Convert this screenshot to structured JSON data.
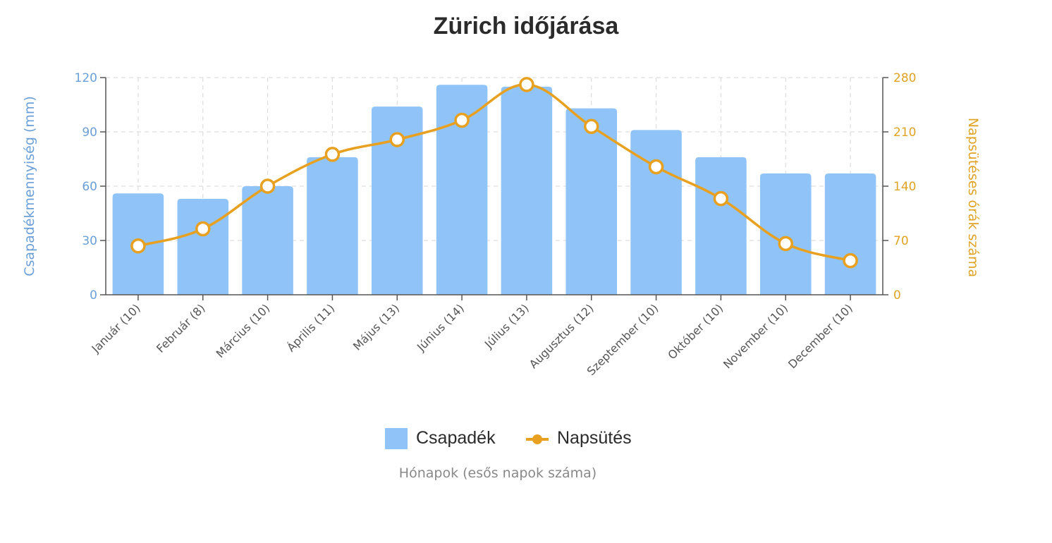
{
  "title": "Zürich időjárása",
  "axes": {
    "left_label": "Csapadékmennyiség (mm)",
    "right_label": "Napsütéses órák száma",
    "x_label": "Hónapok (esős napok száma)",
    "left_ticks": [
      "0",
      "30",
      "60",
      "90",
      "120"
    ],
    "right_ticks": [
      "0",
      "70",
      "140",
      "210",
      "280"
    ]
  },
  "legend": {
    "items": [
      {
        "label": "Csapadék",
        "type": "bar",
        "color": "#90c4f8"
      },
      {
        "label": "Napsütés",
        "type": "line",
        "color": "#e8a020"
      }
    ]
  },
  "colors": {
    "bar": "#90c4f8",
    "line": "#e8a020",
    "left_axis_text": "#6a9fd8",
    "right_axis_text": "#e0a323",
    "grid": "#dddddd",
    "axis": "#555555"
  },
  "chart_data": {
    "type": "bar+line",
    "title": "Zürich időjárása",
    "xlabel": "Hónapok (esős napok száma)",
    "categories": [
      "Január (10)",
      "Február (8)",
      "Március (10)",
      "Április (11)",
      "Május (13)",
      "Június (14)",
      "Július (13)",
      "Augusztus (12)",
      "Szeptember (10)",
      "Október (10)",
      "November (10)",
      "December (10)"
    ],
    "series": [
      {
        "name": "Csapadék",
        "type": "bar",
        "axis": "left",
        "ylabel": "Csapadékmennyiség (mm)",
        "ylim": [
          0,
          120
        ],
        "values": [
          56,
          53,
          60,
          76,
          104,
          116,
          115,
          103,
          91,
          76,
          67,
          67
        ]
      },
      {
        "name": "Napsütés",
        "type": "line",
        "axis": "right",
        "ylabel": "Napsütéses órák száma",
        "ylim": [
          0,
          280
        ],
        "values": [
          63,
          85,
          140,
          181,
          200,
          225,
          271,
          217,
          165,
          124,
          66,
          44
        ]
      }
    ],
    "left_ticks": [
      0,
      30,
      60,
      90,
      120
    ],
    "right_ticks": [
      0,
      70,
      140,
      210,
      280
    ],
    "grid": true,
    "legend_position": "bottom"
  }
}
